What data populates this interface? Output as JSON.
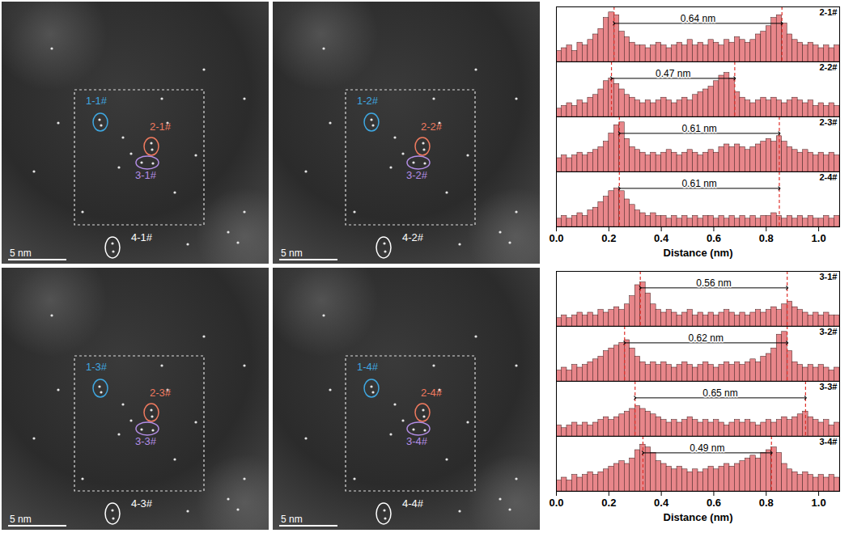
{
  "images": [
    {
      "labels": [
        "1-1#",
        "2-1#",
        "3-1#",
        "4-1#"
      ],
      "scale_bar": "5 nm"
    },
    {
      "labels": [
        "1-2#",
        "2-2#",
        "3-2#",
        "4-2#"
      ],
      "scale_bar": "5 nm"
    },
    {
      "labels": [
        "1-3#",
        "2-3#",
        "3-3#",
        "4-3#"
      ],
      "scale_bar": "5 nm"
    },
    {
      "labels": [
        "1-4#",
        "2-4#",
        "3-4#",
        "4-4#"
      ],
      "scale_bar": "5 nm"
    }
  ],
  "chart_data": [
    {
      "type": "bar",
      "x_label": "Distance (nm)",
      "tick_labels": "x",
      "xlim": [
        0,
        1.08
      ],
      "xticks": [
        {
          "value": 0,
          "label": "0.0"
        },
        0.2,
        0.4,
        0.6,
        0.8,
        {
          "value": 1,
          "label": "1.0"
        }
      ],
      "ylim": [
        0,
        1
      ],
      "bins": [
        0,
        0.02,
        0.04,
        0.06,
        0.08,
        0.1,
        0.12,
        0.14,
        0.16,
        0.18,
        0.2,
        0.22,
        0.24,
        0.26,
        0.28,
        0.3,
        0.32,
        0.34,
        0.36,
        0.38,
        0.4,
        0.42,
        0.44,
        0.46,
        0.48,
        0.5,
        0.52,
        0.54,
        0.56,
        0.58,
        0.6,
        0.62,
        0.64,
        0.66,
        0.68,
        0.7,
        0.72,
        0.74,
        0.76,
        0.78,
        0.8,
        0.82,
        0.84,
        0.86,
        0.88,
        0.9,
        0.92,
        0.94,
        0.96,
        0.98,
        1,
        1.02,
        1.04,
        1.06,
        1.08
      ],
      "series": [
        {
          "name": "2-1#",
          "color": "#e8868a",
          "distance": {
            "from": 0.22,
            "to": 0.86,
            "label": "0.64 nm"
          },
          "values": [
            0.2,
            0.25,
            0.3,
            0.2,
            0.35,
            0.3,
            0.4,
            0.5,
            0.6,
            0.8,
            0.9,
            0.85,
            0.55,
            0.45,
            0.35,
            0.3,
            0.3,
            0.25,
            0.3,
            0.35,
            0.3,
            0.25,
            0.3,
            0.35,
            0.3,
            0.4,
            0.3,
            0.35,
            0.3,
            0.4,
            0.35,
            0.3,
            0.4,
            0.35,
            0.45,
            0.4,
            0.35,
            0.4,
            0.5,
            0.55,
            0.65,
            0.8,
            0.85,
            0.7,
            0.5,
            0.4,
            0.35,
            0.3,
            0.35,
            0.3,
            0.25,
            0.3,
            0.25,
            0.3
          ]
        },
        {
          "name": "2-2#",
          "color": "#e8868a",
          "distance": {
            "from": 0.21,
            "to": 0.68,
            "label": "0.47 nm"
          },
          "values": [
            0.15,
            0.2,
            0.25,
            0.2,
            0.3,
            0.25,
            0.35,
            0.4,
            0.5,
            0.65,
            0.7,
            0.6,
            0.5,
            0.4,
            0.35,
            0.3,
            0.25,
            0.3,
            0.25,
            0.3,
            0.35,
            0.3,
            0.25,
            0.3,
            0.35,
            0.3,
            0.4,
            0.45,
            0.5,
            0.55,
            0.65,
            0.75,
            0.8,
            0.7,
            0.45,
            0.35,
            0.3,
            0.25,
            0.3,
            0.35,
            0.3,
            0.35,
            0.3,
            0.25,
            0.3,
            0.35,
            0.3,
            0.25,
            0.3,
            0.2,
            0.25,
            0.2,
            0.25,
            0.2
          ]
        },
        {
          "name": "2-3#",
          "color": "#e8868a",
          "distance": {
            "from": 0.24,
            "to": 0.85,
            "label": "0.61 nm"
          },
          "values": [
            0.25,
            0.3,
            0.25,
            0.3,
            0.35,
            0.3,
            0.35,
            0.4,
            0.45,
            0.55,
            0.7,
            0.85,
            0.9,
            0.6,
            0.45,
            0.4,
            0.35,
            0.3,
            0.35,
            0.3,
            0.35,
            0.4,
            0.35,
            0.3,
            0.35,
            0.4,
            0.35,
            0.3,
            0.35,
            0.4,
            0.35,
            0.45,
            0.5,
            0.45,
            0.5,
            0.45,
            0.4,
            0.45,
            0.5,
            0.55,
            0.6,
            0.55,
            0.65,
            0.55,
            0.45,
            0.4,
            0.35,
            0.4,
            0.35,
            0.3,
            0.35,
            0.3,
            0.35,
            0.3
          ]
        },
        {
          "name": "2-4#",
          "color": "#e8868a",
          "distance": {
            "from": 0.24,
            "to": 0.85,
            "label": "0.61 nm"
          },
          "values": [
            0.15,
            0.2,
            0.15,
            0.2,
            0.25,
            0.2,
            0.3,
            0.35,
            0.45,
            0.55,
            0.65,
            0.7,
            0.65,
            0.5,
            0.4,
            0.3,
            0.25,
            0.2,
            0.25,
            0.2,
            0.2,
            0.15,
            0.2,
            0.15,
            0.2,
            0.15,
            0.2,
            0.15,
            0.2,
            0.2,
            0.15,
            0.2,
            0.15,
            0.2,
            0.15,
            0.2,
            0.15,
            0.2,
            0.15,
            0.2,
            0.2,
            0.25,
            0.2,
            0.15,
            0.2,
            0.15,
            0.2,
            0.15,
            0.2,
            0.15,
            0.15,
            0.2,
            0.15,
            0.2
          ]
        }
      ]
    },
    {
      "type": "bar",
      "x_label": "Distance (nm)",
      "tick_labels": "x",
      "xlim": [
        0,
        1.08
      ],
      "xticks": [
        {
          "value": 0,
          "label": "0.0"
        },
        0.2,
        0.4,
        0.6,
        0.8,
        {
          "value": 1,
          "label": "1.0"
        }
      ],
      "ylim": [
        0,
        1
      ],
      "bins": [
        0,
        0.02,
        0.04,
        0.06,
        0.08,
        0.1,
        0.12,
        0.14,
        0.16,
        0.18,
        0.2,
        0.22,
        0.24,
        0.26,
        0.28,
        0.3,
        0.32,
        0.34,
        0.36,
        0.38,
        0.4,
        0.42,
        0.44,
        0.46,
        0.48,
        0.5,
        0.52,
        0.54,
        0.56,
        0.58,
        0.6,
        0.62,
        0.64,
        0.66,
        0.68,
        0.7,
        0.72,
        0.74,
        0.76,
        0.78,
        0.8,
        0.82,
        0.84,
        0.86,
        0.88,
        0.9,
        0.92,
        0.94,
        0.96,
        0.98,
        1,
        1.02,
        1.04,
        1.06,
        1.08
      ],
      "series": [
        {
          "name": "3-1#",
          "color": "#e8868a",
          "distance": {
            "from": 0.32,
            "to": 0.88,
            "label": "0.56 nm"
          },
          "values": [
            0.15,
            0.2,
            0.15,
            0.2,
            0.25,
            0.2,
            0.25,
            0.2,
            0.3,
            0.25,
            0.3,
            0.35,
            0.3,
            0.4,
            0.55,
            0.75,
            0.8,
            0.6,
            0.4,
            0.3,
            0.25,
            0.3,
            0.25,
            0.2,
            0.25,
            0.3,
            0.2,
            0.25,
            0.2,
            0.25,
            0.2,
            0.25,
            0.3,
            0.25,
            0.2,
            0.25,
            0.2,
            0.25,
            0.3,
            0.25,
            0.3,
            0.35,
            0.3,
            0.4,
            0.45,
            0.35,
            0.3,
            0.25,
            0.2,
            0.25,
            0.2,
            0.25,
            0.2,
            0.2
          ]
        },
        {
          "name": "3-2#",
          "color": "#e8868a",
          "distance": {
            "from": 0.26,
            "to": 0.88,
            "label": "0.62 nm"
          },
          "values": [
            0.2,
            0.25,
            0.2,
            0.3,
            0.25,
            0.3,
            0.35,
            0.4,
            0.45,
            0.55,
            0.6,
            0.65,
            0.7,
            0.75,
            0.6,
            0.45,
            0.35,
            0.3,
            0.35,
            0.3,
            0.35,
            0.3,
            0.25,
            0.3,
            0.35,
            0.3,
            0.25,
            0.3,
            0.35,
            0.3,
            0.25,
            0.3,
            0.35,
            0.3,
            0.35,
            0.3,
            0.35,
            0.4,
            0.35,
            0.45,
            0.5,
            0.6,
            0.85,
            0.9,
            0.55,
            0.35,
            0.3,
            0.25,
            0.3,
            0.25,
            0.3,
            0.25,
            0.2,
            0.25
          ]
        },
        {
          "name": "3-3#",
          "color": "#e8868a",
          "distance": {
            "from": 0.3,
            "to": 0.95,
            "label": "0.65 nm"
          },
          "values": [
            0.2,
            0.15,
            0.2,
            0.25,
            0.2,
            0.25,
            0.2,
            0.25,
            0.3,
            0.35,
            0.3,
            0.35,
            0.4,
            0.45,
            0.5,
            0.55,
            0.5,
            0.45,
            0.4,
            0.35,
            0.3,
            0.25,
            0.3,
            0.25,
            0.3,
            0.35,
            0.3,
            0.25,
            0.3,
            0.25,
            0.3,
            0.25,
            0.2,
            0.25,
            0.3,
            0.25,
            0.3,
            0.25,
            0.2,
            0.25,
            0.3,
            0.25,
            0.3,
            0.35,
            0.3,
            0.35,
            0.4,
            0.45,
            0.35,
            0.3,
            0.25,
            0.3,
            0.2,
            0.25
          ]
        },
        {
          "name": "3-4#",
          "color": "#e8868a",
          "distance": {
            "from": 0.33,
            "to": 0.82,
            "label": "0.49 nm"
          },
          "values": [
            0.2,
            0.25,
            0.2,
            0.3,
            0.25,
            0.3,
            0.35,
            0.3,
            0.35,
            0.4,
            0.45,
            0.5,
            0.55,
            0.5,
            0.6,
            0.75,
            0.85,
            0.8,
            0.7,
            0.55,
            0.5,
            0.45,
            0.4,
            0.45,
            0.4,
            0.35,
            0.4,
            0.35,
            0.4,
            0.45,
            0.4,
            0.45,
            0.5,
            0.45,
            0.5,
            0.55,
            0.6,
            0.65,
            0.6,
            0.7,
            0.75,
            0.8,
            0.7,
            0.5,
            0.4,
            0.35,
            0.3,
            0.35,
            0.3,
            0.25,
            0.3,
            0.25,
            0.3,
            0.25
          ]
        }
      ]
    }
  ]
}
